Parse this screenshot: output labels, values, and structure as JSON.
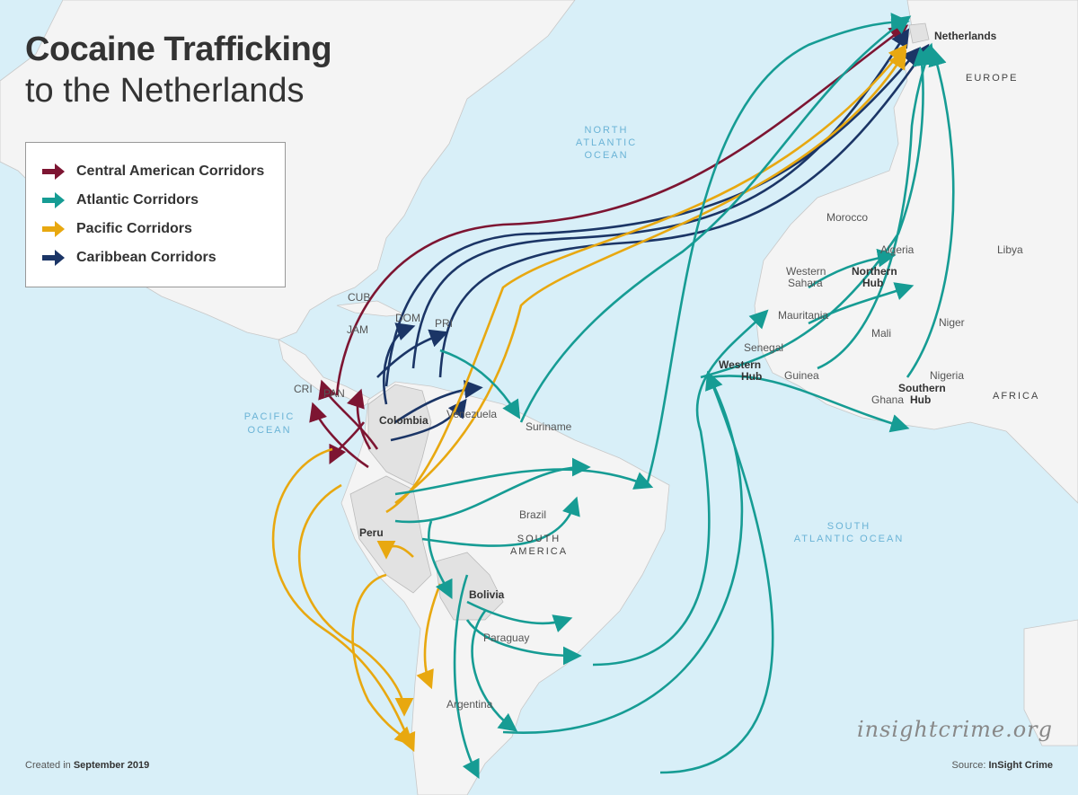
{
  "title": {
    "line1": "Cocaine Trafficking",
    "line2": "to the Netherlands"
  },
  "legend": [
    {
      "label": "Central American Corridors",
      "color": "#7d1532"
    },
    {
      "label": "Atlantic Corridors",
      "color": "#169c94"
    },
    {
      "label": "Pacific Corridors",
      "color": "#e8a810"
    },
    {
      "label": "Caribbean Corridors",
      "color": "#1b3566"
    }
  ],
  "colors": {
    "ocean": "#d8eff8",
    "land": "#f4f4f4",
    "highlight_land": "#e2e2e2"
  },
  "labels": {
    "netherlands": "Netherlands",
    "europe": "EUROPE",
    "north_atlantic": [
      "NORTH",
      "ATLANTIC",
      "OCEAN"
    ],
    "south_atlantic": [
      "SOUTH",
      "ATLANTIC OCEAN"
    ],
    "pacific": [
      "PACIFIC",
      "OCEAN"
    ],
    "morocco": "Morocco",
    "algeria": "Algeria",
    "libya": "Libya",
    "western_sahara": [
      "Western",
      "Sahara"
    ],
    "northern_hub": [
      "Northern",
      "Hub"
    ],
    "mauritania": "Mauritania",
    "mali": "Mali",
    "niger": "Niger",
    "senegal": "Senegal",
    "western_hub": [
      "Western",
      "Hub"
    ],
    "guinea": "Guinea",
    "nigeria": "Nigeria",
    "southern_hub": [
      "Southern",
      "Hub"
    ],
    "ghana": "Ghana",
    "africa": "AFRICA",
    "cub": "CUB",
    "jam": "JAM",
    "dom": "DOM",
    "pri": "PRI",
    "cri": "CRI",
    "pan": "PAN",
    "colombia": "Colombia",
    "venezuela": "Venezuela",
    "suriname": "Suriname",
    "brazil": "Brazil",
    "south_america": [
      "SOUTH",
      "AMERICA"
    ],
    "peru": "Peru",
    "bolivia": "Bolivia",
    "paraguay": "Paraguay",
    "argentina": "Argentina"
  },
  "watermark": "insightcrime.org",
  "footer": {
    "created_prefix": "Created in",
    "created_date": "September 2019",
    "source_prefix": "Source:",
    "source": "InSight Crime"
  }
}
